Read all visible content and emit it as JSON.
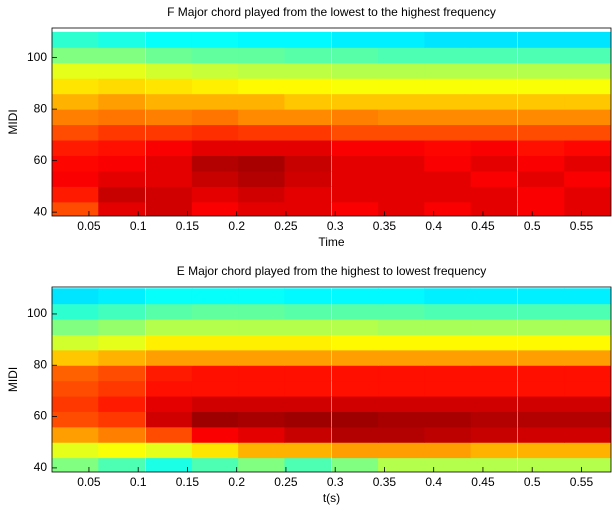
{
  "chart_data": [
    {
      "type": "heatmap",
      "title": "F Major chord played from the lowest to the highest frequency",
      "xlabel": "Time",
      "ylabel": "MIDI",
      "x": [
        0.036,
        0.083,
        0.131,
        0.178,
        0.225,
        0.272,
        0.32,
        0.367,
        0.414,
        0.461,
        0.509,
        0.556
      ],
      "y": [
        41,
        47,
        53,
        59,
        65,
        71,
        77,
        83,
        89,
        95,
        101,
        107
      ],
      "z": [
        [
          0.8,
          0.9,
          0.92,
          0.88,
          0.9,
          0.9,
          0.88,
          0.9,
          0.88,
          0.9,
          0.88,
          0.9
        ],
        [
          0.85,
          0.93,
          0.92,
          0.9,
          0.92,
          0.9,
          0.9,
          0.9,
          0.9,
          0.9,
          0.88,
          0.9
        ],
        [
          0.88,
          0.9,
          0.9,
          0.93,
          0.95,
          0.92,
          0.9,
          0.9,
          0.9,
          0.88,
          0.9,
          0.88
        ],
        [
          0.87,
          0.88,
          0.9,
          0.95,
          0.96,
          0.93,
          0.9,
          0.9,
          0.88,
          0.9,
          0.88,
          0.9
        ],
        [
          0.85,
          0.86,
          0.88,
          0.9,
          0.9,
          0.9,
          0.88,
          0.88,
          0.87,
          0.88,
          0.86,
          0.87
        ],
        [
          0.8,
          0.82,
          0.82,
          0.83,
          0.82,
          0.82,
          0.8,
          0.8,
          0.8,
          0.8,
          0.8,
          0.8
        ],
        [
          0.75,
          0.76,
          0.75,
          0.76,
          0.74,
          0.74,
          0.75,
          0.74,
          0.74,
          0.74,
          0.74,
          0.74
        ],
        [
          0.7,
          0.72,
          0.7,
          0.7,
          0.7,
          0.68,
          0.68,
          0.68,
          0.68,
          0.68,
          0.68,
          0.68
        ],
        [
          0.65,
          0.66,
          0.65,
          0.64,
          0.63,
          0.63,
          0.62,
          0.62,
          0.62,
          0.62,
          0.62,
          0.62
        ],
        [
          0.6,
          0.6,
          0.58,
          0.57,
          0.56,
          0.56,
          0.55,
          0.55,
          0.55,
          0.55,
          0.55,
          0.55
        ],
        [
          0.5,
          0.5,
          0.48,
          0.47,
          0.47,
          0.46,
          0.46,
          0.45,
          0.45,
          0.45,
          0.45,
          0.45
        ],
        [
          0.42,
          0.4,
          0.38,
          0.38,
          0.37,
          0.37,
          0.36,
          0.36,
          0.35,
          0.35,
          0.35,
          0.35
        ]
      ],
      "zlim": [
        0,
        1
      ],
      "colormap": "jet",
      "xlim": [
        0.0125,
        0.58
      ],
      "ylim": [
        38.5,
        111.5
      ],
      "xticks": [
        0.05,
        0.1,
        0.15,
        0.2,
        0.25,
        0.3,
        0.35,
        0.4,
        0.45,
        0.5,
        0.55
      ],
      "yticks": [
        40,
        60,
        80,
        100
      ]
    },
    {
      "type": "heatmap",
      "title": "E Major chord played from the highest to lowest frequency",
      "xlabel": "t(s)",
      "ylabel": "MIDI",
      "x": [
        0.036,
        0.083,
        0.131,
        0.178,
        0.225,
        0.272,
        0.32,
        0.367,
        0.414,
        0.461,
        0.509,
        0.556
      ],
      "y": [
        41,
        47,
        53,
        59,
        65,
        71,
        77,
        83,
        89,
        95,
        101,
        107
      ],
      "z": [
        [
          0.5,
          0.45,
          0.4,
          0.45,
          0.5,
          0.45,
          0.5,
          0.55,
          0.55,
          0.55,
          0.55,
          0.55
        ],
        [
          0.6,
          0.62,
          0.6,
          0.65,
          0.7,
          0.7,
          0.72,
          0.72,
          0.72,
          0.7,
          0.7,
          0.7
        ],
        [
          0.72,
          0.75,
          0.8,
          0.88,
          0.9,
          0.93,
          0.95,
          0.95,
          0.94,
          0.93,
          0.92,
          0.92
        ],
        [
          0.8,
          0.82,
          0.92,
          0.97,
          0.96,
          0.97,
          0.97,
          0.96,
          0.96,
          0.95,
          0.95,
          0.95
        ],
        [
          0.82,
          0.85,
          0.9,
          0.92,
          0.92,
          0.92,
          0.92,
          0.92,
          0.92,
          0.92,
          0.92,
          0.92
        ],
        [
          0.8,
          0.82,
          0.86,
          0.86,
          0.86,
          0.86,
          0.86,
          0.86,
          0.86,
          0.86,
          0.86,
          0.86
        ],
        [
          0.78,
          0.8,
          0.85,
          0.86,
          0.86,
          0.86,
          0.86,
          0.86,
          0.86,
          0.86,
          0.86,
          0.86
        ],
        [
          0.68,
          0.7,
          0.72,
          0.72,
          0.72,
          0.72,
          0.72,
          0.72,
          0.72,
          0.72,
          0.72,
          0.72
        ],
        [
          0.58,
          0.6,
          0.64,
          0.64,
          0.64,
          0.64,
          0.63,
          0.63,
          0.63,
          0.63,
          0.63,
          0.63
        ],
        [
          0.5,
          0.52,
          0.55,
          0.55,
          0.55,
          0.55,
          0.55,
          0.54,
          0.54,
          0.54,
          0.54,
          0.54
        ],
        [
          0.42,
          0.44,
          0.46,
          0.47,
          0.47,
          0.46,
          0.46,
          0.46,
          0.45,
          0.45,
          0.45,
          0.45
        ],
        [
          0.35,
          0.36,
          0.38,
          0.38,
          0.38,
          0.37,
          0.37,
          0.37,
          0.36,
          0.36,
          0.36,
          0.36
        ]
      ],
      "zlim": [
        0,
        1
      ],
      "colormap": "jet",
      "xlim": [
        0.0125,
        0.58
      ],
      "ylim": [
        38.4,
        110.5
      ],
      "xticks": [
        0.05,
        0.1,
        0.15,
        0.2,
        0.25,
        0.3,
        0.35,
        0.4,
        0.45,
        0.5,
        0.55
      ],
      "yticks": [
        40,
        60,
        80,
        100
      ]
    }
  ]
}
